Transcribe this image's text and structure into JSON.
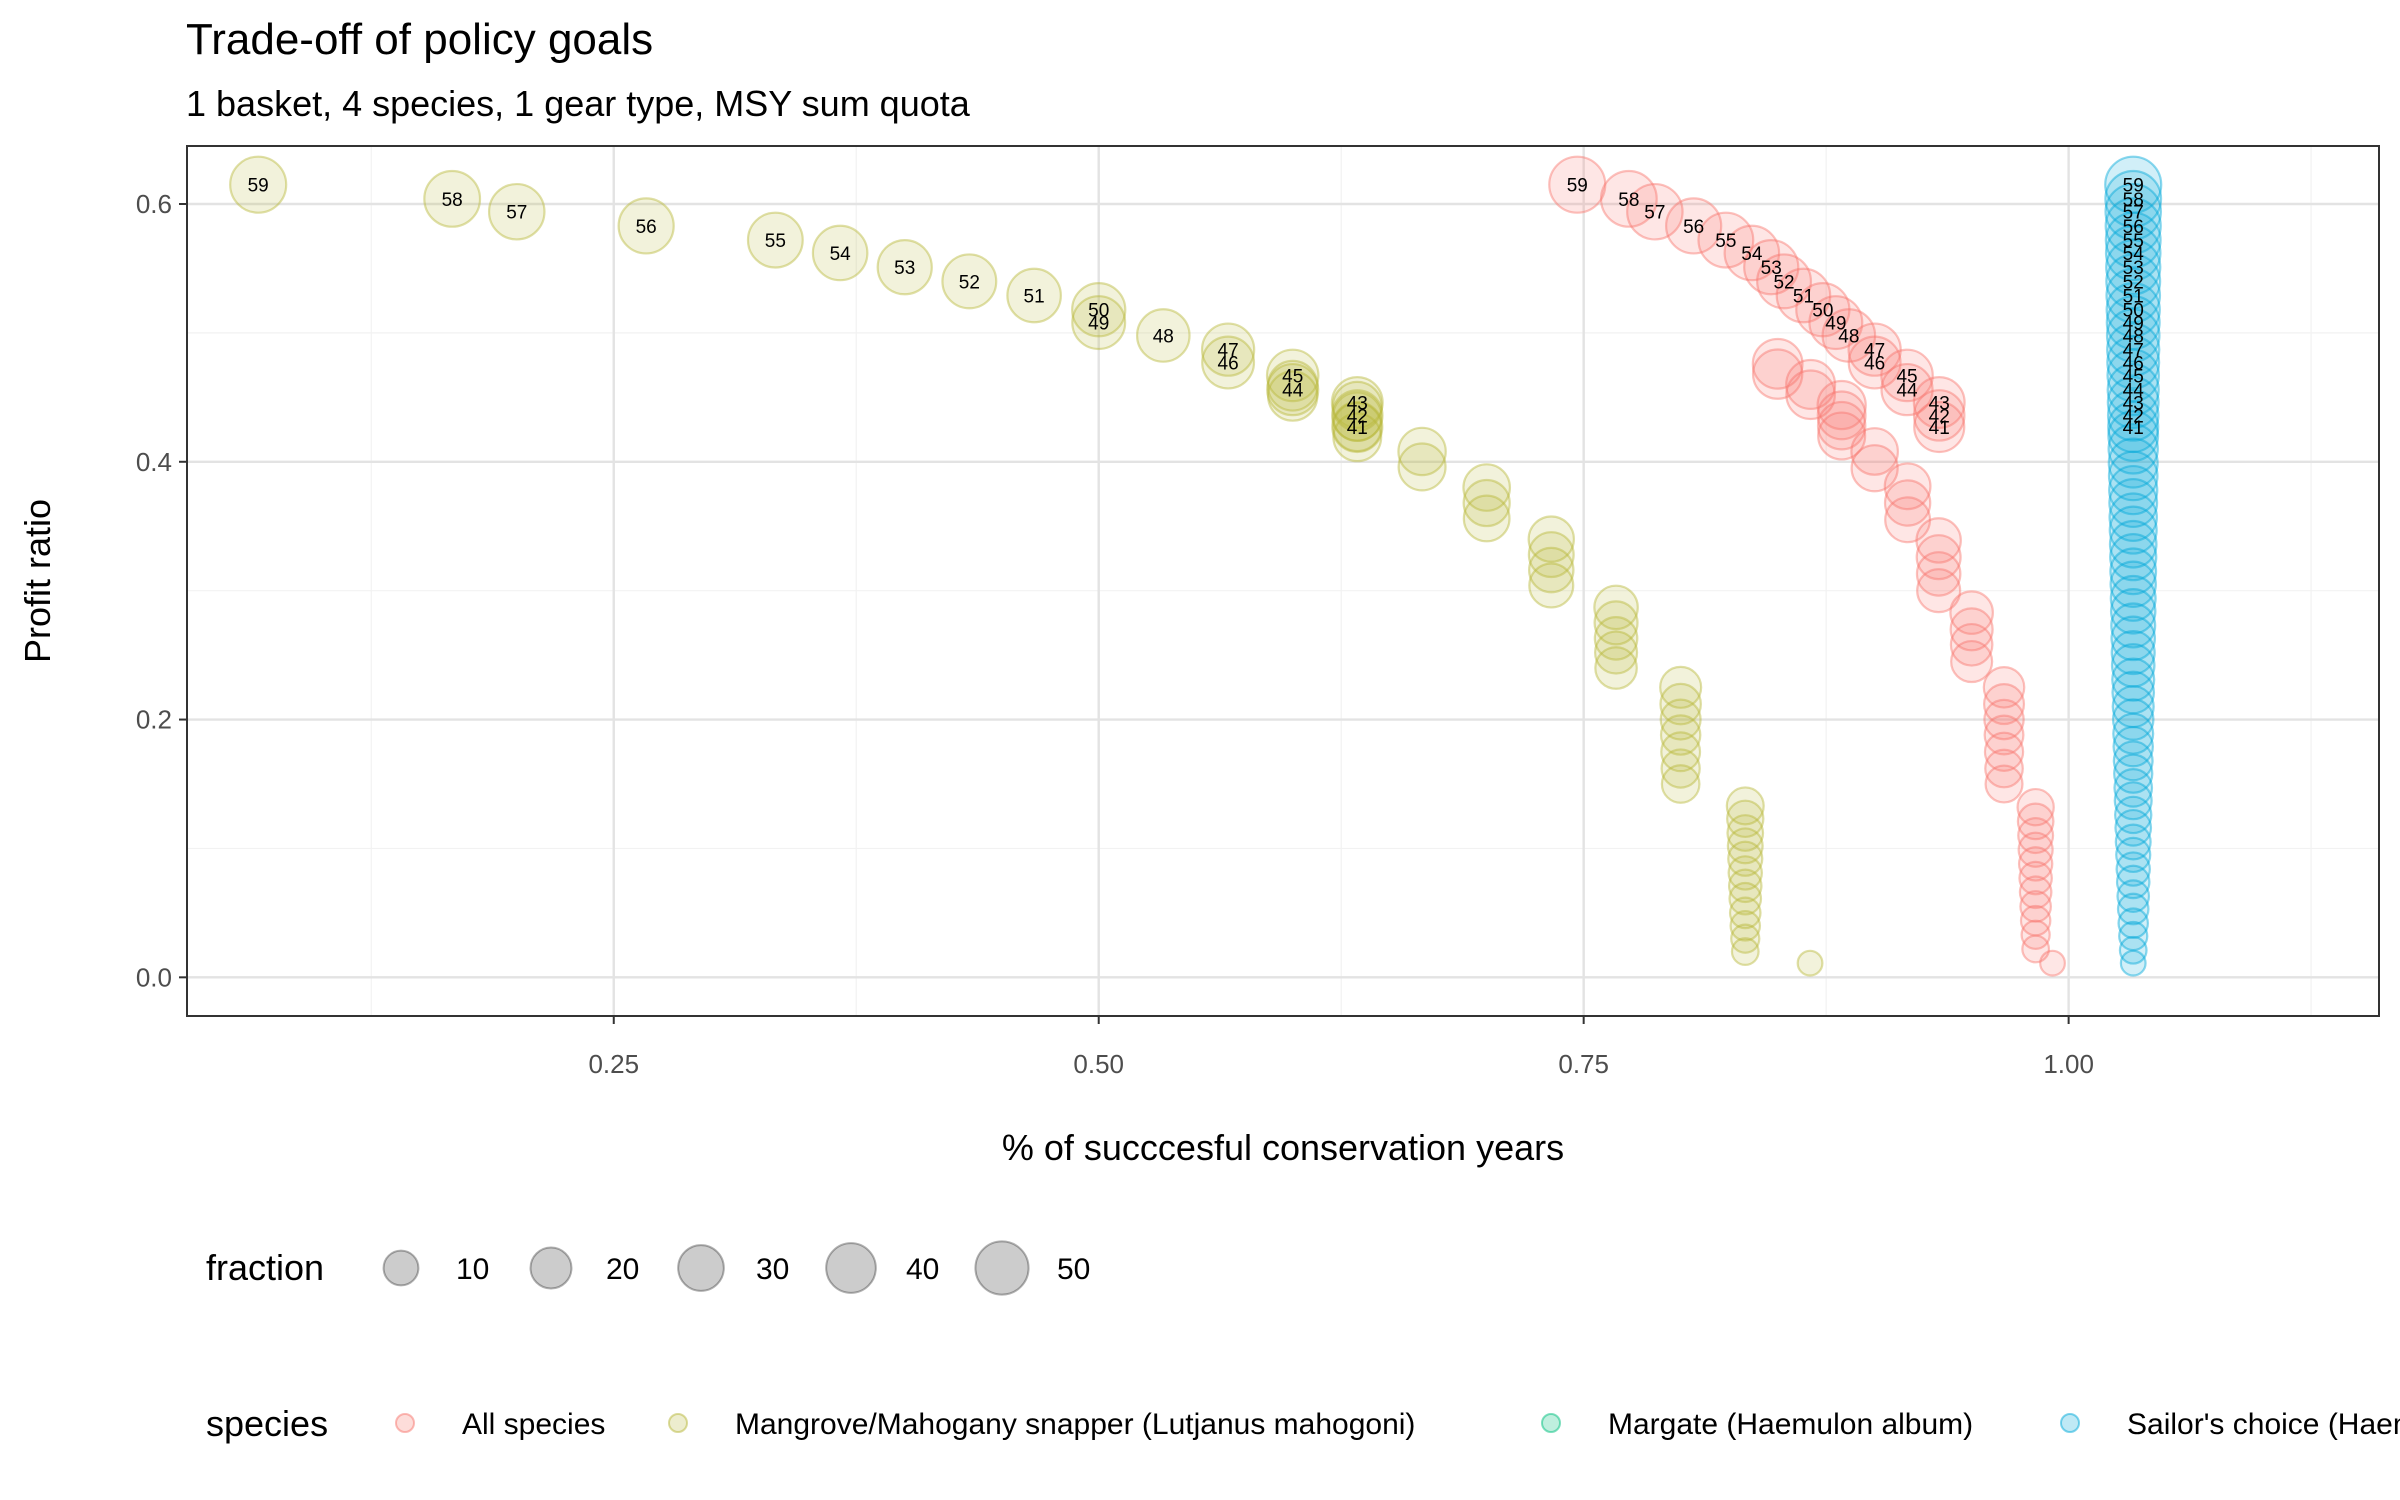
{
  "chart_data": {
    "type": "scatter",
    "title": "Trade-off of policy goals",
    "subtitle": "1 basket, 4 species, 1 gear type, MSY sum quota",
    "xlabel": "% of succcesful conservation years",
    "ylabel": "Profit ratio",
    "xlim": [
      0.03,
      1.16
    ],
    "ylim": [
      -0.03,
      0.645
    ],
    "x_ticks": [
      "0.25",
      "0.50",
      "0.75",
      "1.00"
    ],
    "y_ticks": [
      "0.0",
      "0.2",
      "0.4",
      "0.6"
    ],
    "grid": true,
    "point_labels_min_fraction": 41,
    "size_legend": {
      "title": "fraction",
      "values": [
        10,
        20,
        30,
        40,
        50
      ],
      "labels": [
        "10",
        "20",
        "30",
        "40",
        "50"
      ]
    },
    "color_legend": {
      "title": "species",
      "placement": "bottom"
    },
    "series": [
      {
        "name": "All species",
        "color": "#F8766D",
        "points": [
          [
            0.9917,
            0.011,
            1
          ],
          [
            0.983,
            0.022,
            2
          ],
          [
            0.983,
            0.033,
            3
          ],
          [
            0.983,
            0.044,
            4
          ],
          [
            0.983,
            0.055,
            5
          ],
          [
            0.983,
            0.066,
            6
          ],
          [
            0.983,
            0.077,
            7
          ],
          [
            0.983,
            0.088,
            8
          ],
          [
            0.983,
            0.099,
            9
          ],
          [
            0.983,
            0.11,
            10
          ],
          [
            0.983,
            0.121,
            11
          ],
          [
            0.983,
            0.132,
            12
          ],
          [
            0.9667,
            0.15,
            13
          ],
          [
            0.9667,
            0.162,
            14
          ],
          [
            0.9667,
            0.175,
            15
          ],
          [
            0.9667,
            0.188,
            16
          ],
          [
            0.9667,
            0.2,
            17
          ],
          [
            0.9667,
            0.212,
            18
          ],
          [
            0.9667,
            0.225,
            19
          ],
          [
            0.95,
            0.245,
            20
          ],
          [
            0.95,
            0.258,
            21
          ],
          [
            0.95,
            0.27,
            22
          ],
          [
            0.95,
            0.283,
            23
          ],
          [
            0.933,
            0.3,
            24
          ],
          [
            0.933,
            0.313,
            25
          ],
          [
            0.933,
            0.326,
            26
          ],
          [
            0.933,
            0.339,
            27
          ],
          [
            0.917,
            0.355,
            28
          ],
          [
            0.917,
            0.368,
            29
          ],
          [
            0.917,
            0.381,
            30
          ],
          [
            0.9,
            0.395,
            31
          ],
          [
            0.9,
            0.408,
            32
          ],
          [
            0.883,
            0.42,
            33
          ],
          [
            0.883,
            0.428,
            34
          ],
          [
            0.883,
            0.436,
            35
          ],
          [
            0.883,
            0.444,
            36
          ],
          [
            0.867,
            0.452,
            37
          ],
          [
            0.867,
            0.46,
            38
          ],
          [
            0.85,
            0.468,
            39
          ],
          [
            0.85,
            0.476,
            40
          ],
          [
            0.9333,
            0.427,
            41
          ],
          [
            0.9333,
            0.436,
            42
          ],
          [
            0.9333,
            0.446,
            43
          ],
          [
            0.9167,
            0.456,
            44
          ],
          [
            0.9167,
            0.467,
            45
          ],
          [
            0.9,
            0.477,
            46
          ],
          [
            0.9,
            0.487,
            47
          ],
          [
            0.8867,
            0.498,
            48
          ],
          [
            0.88,
            0.508,
            49
          ],
          [
            0.8733,
            0.518,
            50
          ],
          [
            0.8633,
            0.529,
            51
          ],
          [
            0.8533,
            0.54,
            52
          ],
          [
            0.8467,
            0.551,
            53
          ],
          [
            0.8367,
            0.562,
            54
          ],
          [
            0.8233,
            0.572,
            55
          ],
          [
            0.8067,
            0.583,
            56
          ],
          [
            0.7867,
            0.594,
            57
          ],
          [
            0.7733,
            0.604,
            58
          ],
          [
            0.7467,
            0.615,
            59
          ]
        ]
      },
      {
        "name": "Mangrove/Mahogany snapper (Lutjanus mahogoni)",
        "color": "#B8B83A",
        "points": [
          [
            0.8667,
            0.011,
            1
          ],
          [
            0.8333,
            0.02,
            2
          ],
          [
            0.8333,
            0.03,
            3
          ],
          [
            0.8333,
            0.04,
            4
          ],
          [
            0.8333,
            0.05,
            5
          ],
          [
            0.8333,
            0.061,
            6
          ],
          [
            0.8333,
            0.071,
            7
          ],
          [
            0.8333,
            0.081,
            8
          ],
          [
            0.8333,
            0.092,
            9
          ],
          [
            0.8333,
            0.102,
            10
          ],
          [
            0.8333,
            0.112,
            11
          ],
          [
            0.8333,
            0.123,
            12
          ],
          [
            0.8333,
            0.133,
            13
          ],
          [
            0.8,
            0.15,
            14
          ],
          [
            0.8,
            0.162,
            15
          ],
          [
            0.8,
            0.175,
            16
          ],
          [
            0.8,
            0.188,
            17
          ],
          [
            0.8,
            0.2,
            18
          ],
          [
            0.8,
            0.212,
            19
          ],
          [
            0.8,
            0.225,
            20
          ],
          [
            0.7667,
            0.24,
            21
          ],
          [
            0.7667,
            0.252,
            22
          ],
          [
            0.7667,
            0.263,
            23
          ],
          [
            0.7667,
            0.275,
            24
          ],
          [
            0.7667,
            0.287,
            25
          ],
          [
            0.7333,
            0.304,
            26
          ],
          [
            0.7333,
            0.316,
            27
          ],
          [
            0.7333,
            0.328,
            28
          ],
          [
            0.7333,
            0.34,
            29
          ],
          [
            0.7,
            0.356,
            30
          ],
          [
            0.7,
            0.368,
            31
          ],
          [
            0.7,
            0.38,
            32
          ],
          [
            0.6667,
            0.396,
            33
          ],
          [
            0.6667,
            0.408,
            34
          ],
          [
            0.6333,
            0.419,
            35
          ],
          [
            0.6333,
            0.427,
            36
          ],
          [
            0.6333,
            0.435,
            37
          ],
          [
            0.6333,
            0.443,
            38
          ],
          [
            0.6,
            0.451,
            39
          ],
          [
            0.6,
            0.459,
            40
          ],
          [
            0.6333,
            0.427,
            41
          ],
          [
            0.6333,
            0.436,
            42
          ],
          [
            0.6333,
            0.446,
            43
          ],
          [
            0.6,
            0.456,
            44
          ],
          [
            0.6,
            0.467,
            45
          ],
          [
            0.5667,
            0.477,
            46
          ],
          [
            0.5667,
            0.487,
            47
          ],
          [
            0.5333,
            0.498,
            48
          ],
          [
            0.5,
            0.508,
            49
          ],
          [
            0.5,
            0.518,
            50
          ],
          [
            0.4667,
            0.529,
            51
          ],
          [
            0.4333,
            0.54,
            52
          ],
          [
            0.4,
            0.551,
            53
          ],
          [
            0.3667,
            0.562,
            54
          ],
          [
            0.3333,
            0.572,
            55
          ],
          [
            0.2667,
            0.583,
            56
          ],
          [
            0.2,
            0.594,
            57
          ],
          [
            0.1667,
            0.604,
            58
          ],
          [
            0.0667,
            0.615,
            59
          ]
        ]
      },
      {
        "name": "Margate (Haemulon album)",
        "color": "#00BF7D",
        "points": []
      },
      {
        "name": "Sailor's choice (Haemulon parra)",
        "color": "#00A9D9",
        "points": [
          [
            1.0333,
            0.011,
            1
          ],
          [
            1.0333,
            0.021,
            2
          ],
          [
            1.0333,
            0.032,
            3
          ],
          [
            1.0333,
            0.042,
            4
          ],
          [
            1.0333,
            0.053,
            5
          ],
          [
            1.0333,
            0.063,
            6
          ],
          [
            1.0333,
            0.074,
            7
          ],
          [
            1.0333,
            0.084,
            8
          ],
          [
            1.0333,
            0.095,
            9
          ],
          [
            1.0333,
            0.105,
            10
          ],
          [
            1.0333,
            0.116,
            11
          ],
          [
            1.0333,
            0.126,
            12
          ],
          [
            1.0333,
            0.137,
            13
          ],
          [
            1.0333,
            0.147,
            14
          ],
          [
            1.0333,
            0.158,
            15
          ],
          [
            1.0333,
            0.168,
            16
          ],
          [
            1.0333,
            0.179,
            17
          ],
          [
            1.0333,
            0.189,
            18
          ],
          [
            1.0333,
            0.2,
            19
          ],
          [
            1.0333,
            0.21,
            20
          ],
          [
            1.0333,
            0.221,
            21
          ],
          [
            1.0333,
            0.231,
            22
          ],
          [
            1.0333,
            0.242,
            23
          ],
          [
            1.0333,
            0.252,
            24
          ],
          [
            1.0333,
            0.263,
            25
          ],
          [
            1.0333,
            0.273,
            26
          ],
          [
            1.0333,
            0.284,
            27
          ],
          [
            1.0333,
            0.294,
            28
          ],
          [
            1.0333,
            0.305,
            29
          ],
          [
            1.0333,
            0.315,
            30
          ],
          [
            1.0333,
            0.326,
            31
          ],
          [
            1.0333,
            0.336,
            32
          ],
          [
            1.0333,
            0.347,
            33
          ],
          [
            1.0333,
            0.357,
            34
          ],
          [
            1.0333,
            0.368,
            35
          ],
          [
            1.0333,
            0.378,
            36
          ],
          [
            1.0333,
            0.389,
            37
          ],
          [
            1.0333,
            0.399,
            38
          ],
          [
            1.0333,
            0.41,
            39
          ],
          [
            1.0333,
            0.42,
            40
          ],
          [
            1.0333,
            0.427,
            41
          ],
          [
            1.0333,
            0.436,
            42
          ],
          [
            1.0333,
            0.446,
            43
          ],
          [
            1.0333,
            0.456,
            44
          ],
          [
            1.0333,
            0.467,
            45
          ],
          [
            1.0333,
            0.477,
            46
          ],
          [
            1.0333,
            0.487,
            47
          ],
          [
            1.0333,
            0.498,
            48
          ],
          [
            1.0333,
            0.508,
            49
          ],
          [
            1.0333,
            0.518,
            50
          ],
          [
            1.0333,
            0.529,
            51
          ],
          [
            1.0333,
            0.54,
            52
          ],
          [
            1.0333,
            0.551,
            53
          ],
          [
            1.0333,
            0.562,
            54
          ],
          [
            1.0333,
            0.572,
            55
          ],
          [
            1.0333,
            0.583,
            56
          ],
          [
            1.0333,
            0.594,
            57
          ],
          [
            1.0333,
            0.604,
            58
          ],
          [
            1.0333,
            0.615,
            59
          ]
        ]
      }
    ]
  }
}
